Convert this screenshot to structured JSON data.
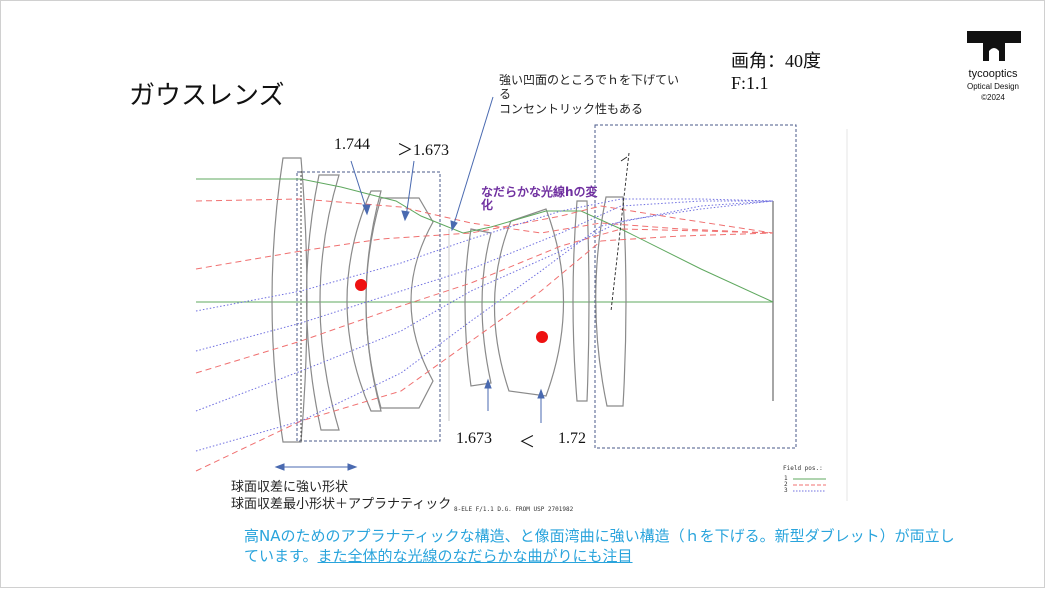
{
  "title": "ガウスレンズ",
  "specs": {
    "angle": "画角：40度",
    "fnum": "F:1.1"
  },
  "logo": {
    "name": "tycooptics",
    "sub": "Optical Design",
    "year": "©2024"
  },
  "annotations": {
    "concentric_line1": "強い凹面のところでｈを下げてい",
    "concentric_line2": "る",
    "concentric_line3": "コンセントリック性もある",
    "smooth_line1": "なだらかな光線hの変",
    "smooth_line2": "化",
    "index_top_left": "1.744",
    "index_top_right": "＞1.673",
    "index_bottom_left": "1.673",
    "index_bottom_sym": "＜",
    "index_bottom_right": "1.72",
    "sph_line1": "球面収差に強い形状",
    "sph_line2": "球面収差最小形状＋アプラナティック",
    "drawing_caption": "8-ELE F/1.1 D.G. FROM USP 2701982",
    "field_pos": "Field pos.:",
    "field_1": "1",
    "field_2": "2",
    "field_3": "3"
  },
  "bottom_text": {
    "part1": "高NAのためのアプラナティックな構造、と像面湾曲に強い構造（ｈを下げる。新型ダブレット）が両立しています。",
    "part2": "また全体的な光線のなだらかな曲がりにも注目"
  },
  "colors": {
    "green_ray": "#5fa85f",
    "red_ray": "#f07070",
    "blue_ray": "#7070e0",
    "lens": "#888888",
    "dashbox": "#4a5a8a",
    "arrow": "#4a6ab0",
    "dot": "#ee1111"
  }
}
